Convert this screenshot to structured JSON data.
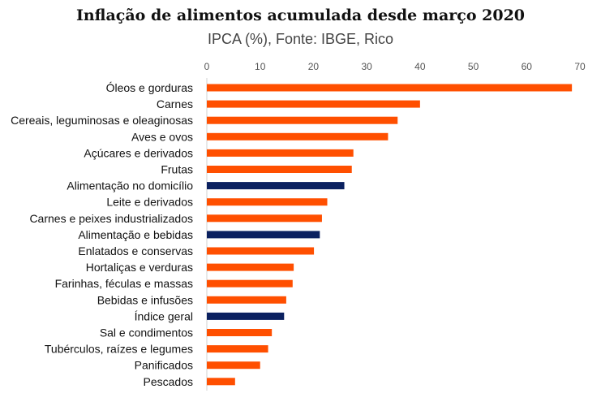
{
  "colors": {
    "highlight": "#0b2160",
    "default": "#ff4f00"
  },
  "chart_data": {
    "type": "bar",
    "orientation": "horizontal",
    "title": "Inflação de alimentos acumulada desde março 2020",
    "subtitle": "IPCA (%), Fonte: IBGE, Rico",
    "xlim": [
      0,
      70
    ],
    "xticks": [
      "0",
      "10",
      "20",
      "30",
      "40",
      "50",
      "60",
      "70"
    ],
    "axis_position": "top",
    "grid": false,
    "categories": [
      "Óleos e gorduras",
      "Carnes",
      "Cereais, leguminosas e oleaginosas",
      "Aves e ovos",
      "Açúcares e derivados",
      "Frutas",
      "Alimentação no domicílio",
      "Leite e derivados",
      "Carnes e peixes industrializados",
      "Alimentação e bebidas",
      "Enlatados e conservas",
      "Hortaliças e verduras",
      "Farinhas, féculas e massas",
      "Bebidas e infusões",
      "Índice geral",
      "Sal e condimentos",
      "Tubérculos, raízes e legumes",
      "Panificados",
      "Pescados"
    ],
    "values": [
      68.5,
      40.0,
      35.8,
      34.0,
      27.5,
      27.2,
      25.8,
      22.6,
      21.6,
      21.2,
      20.1,
      16.3,
      16.1,
      14.9,
      14.5,
      12.2,
      11.5,
      10.0,
      5.3
    ],
    "highlighted": [
      false,
      false,
      false,
      false,
      false,
      false,
      true,
      false,
      false,
      true,
      false,
      false,
      false,
      false,
      true,
      false,
      false,
      false,
      false
    ]
  }
}
